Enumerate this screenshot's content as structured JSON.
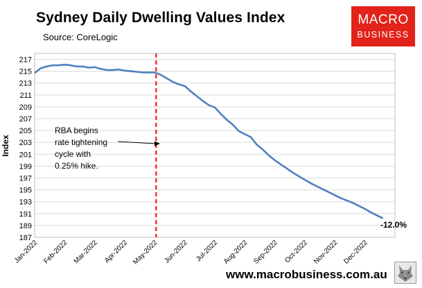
{
  "header": {
    "title": "Sydney Daily Dwelling Values Index",
    "source": "Source: CoreLogic"
  },
  "logo": {
    "line1": "MACRO",
    "line2": "BUSINESS"
  },
  "footer": {
    "url": "www.macrobusiness.com.au"
  },
  "colors": {
    "line": "#4f81bd",
    "marker": "#ff0000",
    "brand": "#e2231a"
  },
  "chart_data": {
    "type": "line",
    "title": "Sydney Daily Dwelling Values Index",
    "ylabel": "Index",
    "xlabel": "",
    "ylim": [
      187,
      218
    ],
    "yticks": [
      187,
      189,
      191,
      193,
      195,
      197,
      199,
      201,
      203,
      205,
      207,
      209,
      211,
      213,
      215,
      217
    ],
    "xticks": [
      "Jan-2022",
      "Feb-2022",
      "Mar-2022",
      "Apr-2022",
      "May-2022",
      "Jun-2022",
      "Jul-2022",
      "Aug-2022",
      "Sep-2022",
      "Oct-2022",
      "Nov-2022",
      "Dec-2022"
    ],
    "grid": true,
    "series": [
      {
        "name": "Sydney",
        "x": [
          0,
          0.2,
          0.4,
          0.6,
          0.8,
          1.0,
          1.2,
          1.4,
          1.6,
          1.8,
          2.0,
          2.2,
          2.4,
          2.6,
          2.8,
          3.0,
          3.2,
          3.4,
          3.6,
          3.8,
          4.0,
          4.2,
          4.4,
          4.6,
          4.8,
          5.0,
          5.2,
          5.4,
          5.6,
          5.8,
          6.0,
          6.2,
          6.4,
          6.6,
          6.8,
          7.0,
          7.2,
          7.4,
          7.6,
          7.8,
          8.0,
          8.2,
          8.4,
          8.6,
          8.8,
          9.0,
          9.2,
          9.4,
          9.6,
          9.8,
          10.0,
          10.2,
          10.4,
          10.6,
          10.8,
          11.0,
          11.2,
          11.4,
          11.6
        ],
        "values": [
          214.7,
          215.5,
          215.8,
          216.0,
          216.0,
          216.1,
          216.0,
          215.8,
          215.8,
          215.6,
          215.7,
          215.4,
          215.2,
          215.2,
          215.3,
          215.1,
          215.0,
          214.9,
          214.8,
          214.8,
          214.8,
          214.4,
          213.8,
          213.2,
          212.8,
          212.5,
          211.6,
          210.8,
          210.0,
          209.3,
          208.9,
          207.8,
          206.8,
          206.0,
          204.9,
          204.4,
          203.9,
          202.6,
          201.8,
          200.8,
          200.0,
          199.3,
          198.6,
          197.9,
          197.3,
          196.7,
          196.1,
          195.6,
          195.1,
          194.6,
          194.1,
          193.6,
          193.2,
          192.8,
          192.3,
          191.8,
          191.2,
          190.7,
          190.2
        ]
      }
    ],
    "event_marker": {
      "x": 4.0,
      "style": "dashed"
    },
    "annotations": {
      "event_text": [
        "RBA begins",
        "rate tightening",
        "cycle with",
        "0.25% hike."
      ],
      "end_label": "-12.0%"
    }
  }
}
